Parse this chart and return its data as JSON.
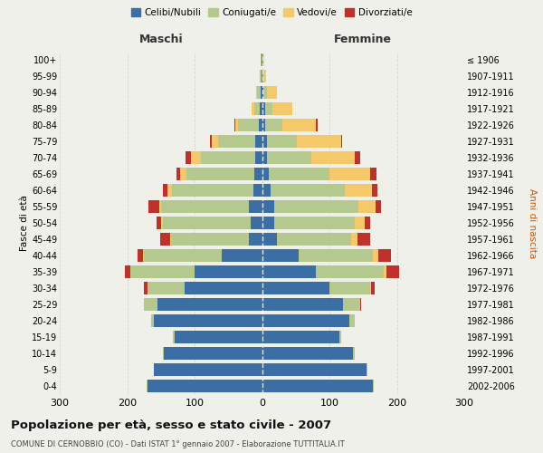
{
  "age_groups": [
    "0-4",
    "5-9",
    "10-14",
    "15-19",
    "20-24",
    "25-29",
    "30-34",
    "35-39",
    "40-44",
    "45-49",
    "50-54",
    "55-59",
    "60-64",
    "65-69",
    "70-74",
    "75-79",
    "80-84",
    "85-89",
    "90-94",
    "95-99",
    "100+"
  ],
  "birth_years": [
    "2002-2006",
    "1997-2001",
    "1992-1996",
    "1987-1991",
    "1982-1986",
    "1977-1981",
    "1972-1976",
    "1967-1971",
    "1962-1966",
    "1957-1961",
    "1952-1956",
    "1947-1951",
    "1942-1946",
    "1937-1941",
    "1932-1936",
    "1927-1931",
    "1922-1926",
    "1917-1921",
    "1912-1916",
    "1907-1911",
    "≤ 1906"
  ],
  "maschi": {
    "celibi": [
      170,
      160,
      145,
      130,
      160,
      155,
      115,
      100,
      60,
      20,
      17,
      20,
      13,
      12,
      10,
      10,
      5,
      3,
      2,
      1,
      1
    ],
    "coniugati": [
      1,
      1,
      2,
      2,
      5,
      20,
      55,
      95,
      115,
      115,
      130,
      130,
      120,
      100,
      80,
      55,
      30,
      8,
      5,
      2,
      1
    ],
    "vedovi": [
      0,
      0,
      0,
      0,
      0,
      0,
      0,
      0,
      1,
      1,
      2,
      3,
      7,
      10,
      15,
      10,
      5,
      5,
      2,
      0,
      0
    ],
    "divorziati": [
      0,
      0,
      0,
      0,
      0,
      0,
      5,
      8,
      8,
      15,
      8,
      15,
      7,
      5,
      8,
      2,
      1,
      0,
      0,
      0,
      0
    ]
  },
  "femmine": {
    "nubili": [
      165,
      155,
      135,
      115,
      130,
      120,
      100,
      80,
      55,
      22,
      18,
      18,
      13,
      10,
      8,
      7,
      5,
      5,
      2,
      1,
      1
    ],
    "coniugate": [
      1,
      1,
      2,
      3,
      8,
      25,
      60,
      100,
      110,
      110,
      120,
      125,
      110,
      90,
      65,
      45,
      25,
      10,
      5,
      2,
      1
    ],
    "vedove": [
      0,
      0,
      0,
      0,
      0,
      0,
      2,
      5,
      8,
      10,
      15,
      25,
      40,
      60,
      65,
      65,
      50,
      30,
      15,
      3,
      1
    ],
    "divorziate": [
      0,
      0,
      0,
      0,
      0,
      2,
      5,
      18,
      18,
      18,
      8,
      8,
      8,
      10,
      8,
      2,
      2,
      0,
      0,
      0,
      0
    ]
  },
  "colors": {
    "celibi_nubili": "#3a6ea5",
    "coniugati": "#b5c98e",
    "vedovi": "#f5c96a",
    "divorziati": "#c0312b"
  },
  "title": "Popolazione per età, sesso e stato civile - 2007",
  "subtitle": "COMUNE DI CERNOBBIO (CO) - Dati ISTAT 1° gennaio 2007 - Elaborazione TUTTITALIA.IT",
  "xlabel_left": "Maschi",
  "xlabel_right": "Femmine",
  "ylabel_left": "Fasce di età",
  "ylabel_right": "Anni di nascita",
  "xlim": 300,
  "background_color": "#f0f0eb",
  "grid_color": "#cccccc"
}
